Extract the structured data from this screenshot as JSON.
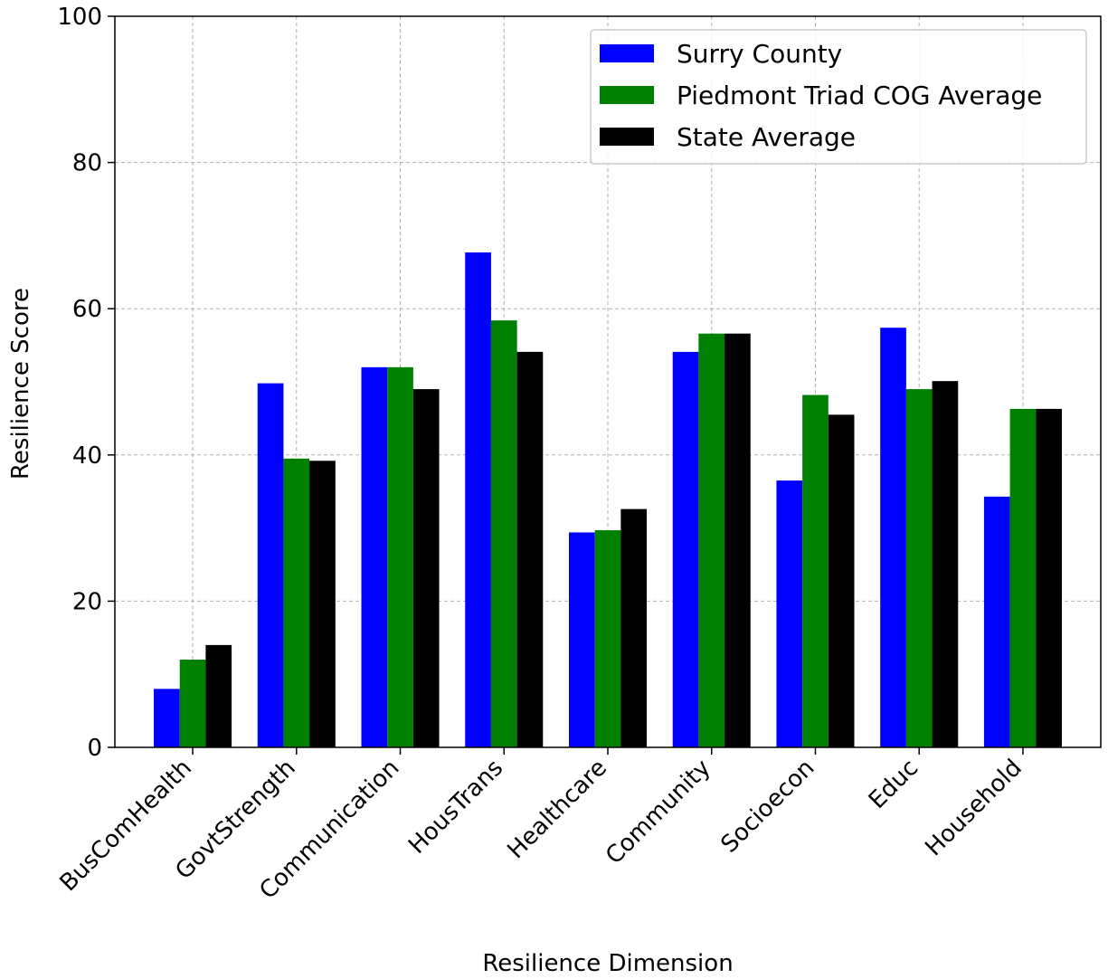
{
  "chart_data": {
    "type": "bar",
    "title": "",
    "xlabel": "Resilience Dimension",
    "ylabel": "Resilience Score",
    "ylim": [
      0,
      100
    ],
    "yticks": [
      0,
      20,
      40,
      60,
      80,
      100
    ],
    "grid": true,
    "legend_position": "top-right",
    "categories": [
      "BusComHealth",
      "GovtStrength",
      "Communication",
      "HousTrans",
      "Healthcare",
      "Community",
      "Socioecon",
      "Educ",
      "Household"
    ],
    "series": [
      {
        "name": "Surry County",
        "color": "#0000ff",
        "values": [
          8.0,
          49.8,
          52.0,
          67.7,
          29.4,
          54.1,
          36.5,
          57.4,
          34.3
        ]
      },
      {
        "name": "Piedmont Triad COG Average",
        "color": "#008000",
        "values": [
          12.0,
          39.5,
          52.0,
          58.4,
          29.7,
          56.6,
          48.2,
          49.0,
          46.3
        ]
      },
      {
        "name": "State Average",
        "color": "#000000",
        "values": [
          14.0,
          39.2,
          49.0,
          54.1,
          32.6,
          56.6,
          45.5,
          50.1,
          46.3
        ]
      }
    ]
  }
}
